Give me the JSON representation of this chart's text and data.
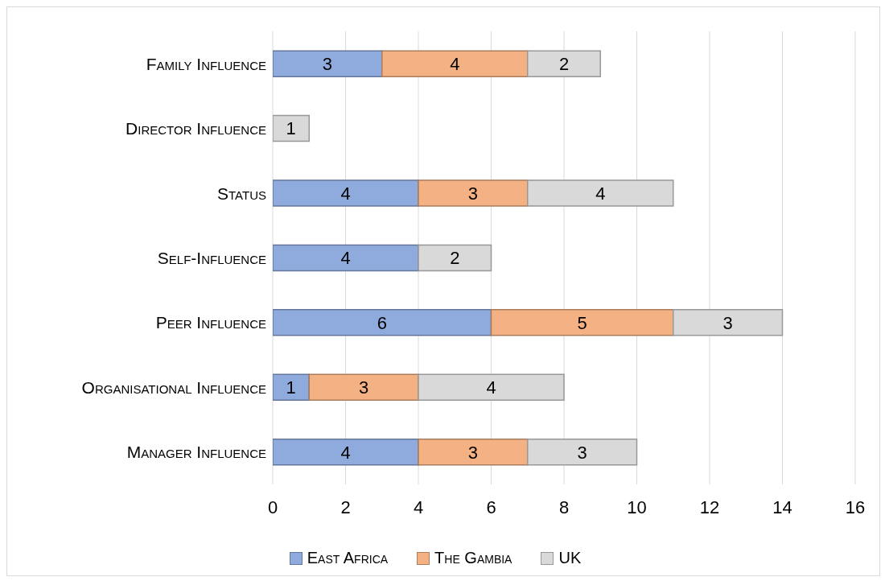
{
  "chart_data": {
    "type": "bar",
    "orientation": "horizontal",
    "stacked": true,
    "categories": [
      "Family Influence",
      "Director Influence",
      "Status",
      "Self-Influence",
      "Peer Influence",
      "Organisational Influence",
      "Manager Influence"
    ],
    "series": [
      {
        "name": "East Africa",
        "color": "#8faadc",
        "values": [
          3,
          null,
          4,
          4,
          6,
          1,
          4
        ]
      },
      {
        "name": "The Gambia",
        "color": "#f4b183",
        "values": [
          4,
          null,
          3,
          null,
          5,
          3,
          3
        ]
      },
      {
        "name": "UK",
        "color": "#d9d9d9",
        "values": [
          2,
          1,
          4,
          2,
          3,
          4,
          3
        ]
      }
    ],
    "xlim": [
      0,
      16
    ],
    "xticks": [
      0,
      2,
      4,
      6,
      8,
      10,
      12,
      14,
      16
    ],
    "grid": "x",
    "legend": "bottom",
    "data_labels": true
  }
}
